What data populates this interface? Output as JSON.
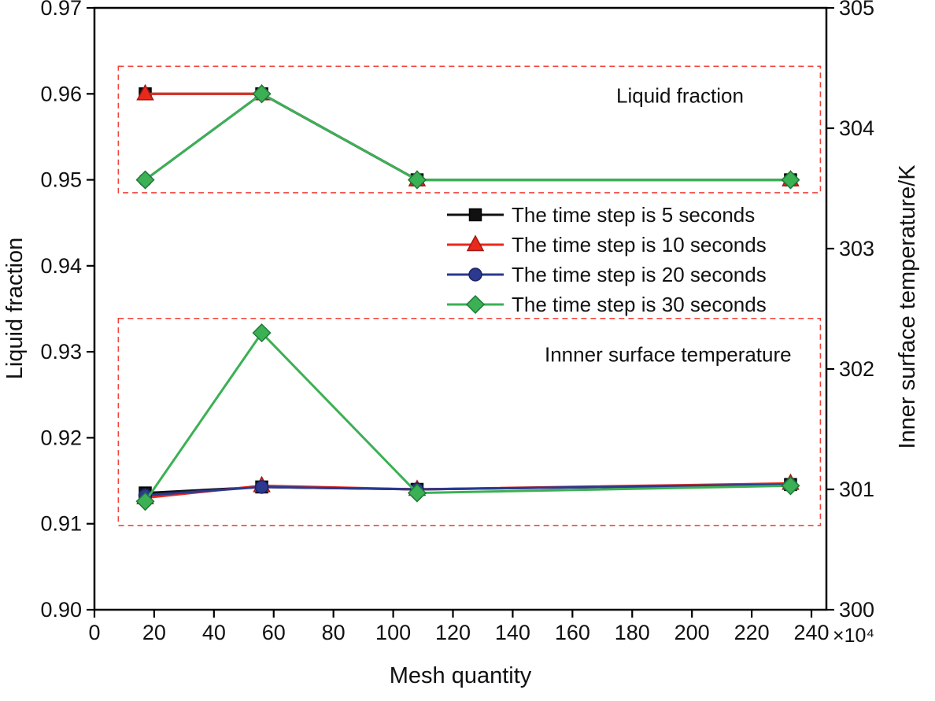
{
  "chart_data": {
    "type": "line",
    "title": "",
    "xlabel": "Mesh quantity",
    "x_multiplier": "×10⁴",
    "ylabel_left": "Liquid fraction",
    "ylabel_right": "Inner surface temperature/K",
    "xlim": [
      0,
      245
    ],
    "ylim_left": [
      0.9,
      0.97
    ],
    "ylim_right": [
      300,
      305
    ],
    "grid": false,
    "legend_position": "center",
    "x_ticks": [
      0,
      20,
      40,
      60,
      80,
      100,
      120,
      140,
      160,
      180,
      200,
      220,
      240
    ],
    "y_ticks_left": [
      "0.90",
      "0.91",
      "0.92",
      "0.93",
      "0.94",
      "0.95",
      "0.96",
      "0.97"
    ],
    "y_ticks_right": [
      300,
      301,
      302,
      303,
      304,
      305
    ],
    "x": [
      17,
      56,
      108,
      233
    ],
    "series": [
      {
        "name": "The time step is 5 seconds",
        "color": "#111111",
        "edge": "#000000",
        "marker": "square",
        "liquid_fraction": [
          0.96,
          0.96,
          0.95,
          0.95
        ],
        "inner_surface_temperature": [
          300.97,
          301.02,
          301.0,
          301.04
        ]
      },
      {
        "name": "The time step is 10 seconds",
        "color": "#e8291c",
        "edge": "#a81710",
        "marker": "triangle",
        "liquid_fraction": [
          0.96,
          0.96,
          0.95,
          0.95
        ],
        "inner_surface_temperature": [
          300.93,
          301.03,
          301.0,
          301.05
        ]
      },
      {
        "name": "The time step is 20 seconds",
        "color": "#2b3990",
        "edge": "#1a2260",
        "marker": "circle",
        "liquid_fraction": [
          0.95,
          0.96,
          0.95,
          0.95
        ],
        "inner_surface_temperature": [
          300.95,
          301.02,
          301.0,
          301.04
        ]
      },
      {
        "name": "The time step is 30 seconds",
        "color": "#3cb054",
        "edge": "#1f7a38",
        "marker": "diamond",
        "liquid_fraction": [
          0.95,
          0.96,
          0.95,
          0.95
        ],
        "inner_surface_temperature": [
          300.9,
          302.3,
          300.97,
          301.03
        ]
      }
    ],
    "annotations": [
      {
        "label": "Liquid fraction",
        "axis": "left",
        "x_range": [
          8,
          243
        ],
        "y_range": [
          0.9485,
          0.9632
        ],
        "label_pos": {
          "x": 196,
          "y": 0.9598
        },
        "box_color": "#f2433b"
      },
      {
        "label": "Innner surface temperature",
        "axis": "right",
        "x_range": [
          8,
          243
        ],
        "y_range": [
          300.7,
          302.42
        ],
        "label_pos": {
          "x": 192,
          "y": 302.12
        },
        "box_color": "#f2433b"
      }
    ]
  }
}
